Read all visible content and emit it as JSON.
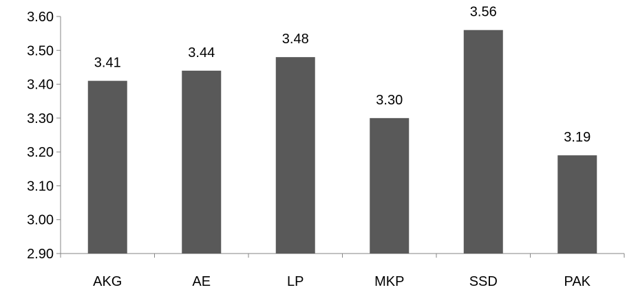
{
  "chart_data": {
    "type": "bar",
    "title": "",
    "xlabel": "",
    "ylabel": "",
    "categories": [
      "AKG",
      "AE",
      "LP",
      "MKP",
      "SSD",
      "PAK"
    ],
    "values": [
      3.41,
      3.44,
      3.48,
      3.3,
      3.56,
      3.19
    ],
    "data_labels": [
      "3.41",
      "3.44",
      "3.48",
      "3.30",
      "3.56",
      "3.19"
    ],
    "ylim": [
      2.9,
      3.6
    ],
    "yticks": [
      "2.90",
      "3.00",
      "3.10",
      "3.20",
      "3.30",
      "3.40",
      "3.50",
      "3.60"
    ],
    "grid": false,
    "legend": "none",
    "bar_color": "#595959",
    "axis_color": "#868686"
  }
}
